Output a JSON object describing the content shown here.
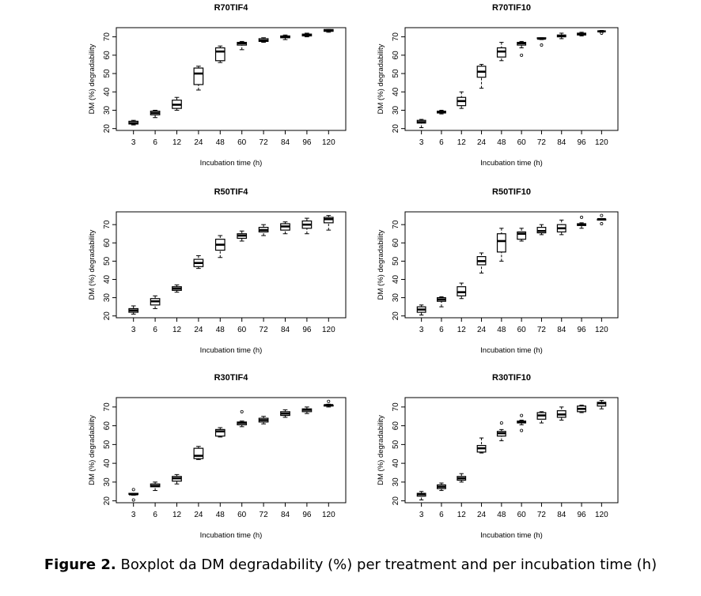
{
  "chart_data": [
    {
      "type": "boxplot",
      "title": "R70TIF4",
      "xlabel": "Incubation time (h)",
      "ylabel": "DM (%) degradability",
      "categories": [
        "3",
        "6",
        "12",
        "24",
        "48",
        "60",
        "72",
        "84",
        "96",
        "120"
      ],
      "boxes": [
        {
          "low": 22,
          "q1": 22.5,
          "median": 23,
          "q3": 24,
          "high": 24.5
        },
        {
          "low": 26,
          "q1": 27.5,
          "median": 28.5,
          "q3": 29.5,
          "high": 30
        },
        {
          "low": 30,
          "q1": 31,
          "median": 33,
          "q3": 35.5,
          "high": 37
        },
        {
          "low": 41,
          "q1": 44,
          "median": 50,
          "q3": 53,
          "high": 54
        },
        {
          "low": 56,
          "q1": 57,
          "median": 62,
          "q3": 64,
          "high": 65
        },
        {
          "low": 63,
          "q1": 65.5,
          "median": 66.5,
          "q3": 67,
          "high": 67.5
        },
        {
          "low": 67,
          "q1": 67.5,
          "median": 68,
          "q3": 69,
          "high": 69.5
        },
        {
          "low": 68.5,
          "q1": 69.5,
          "median": 70,
          "q3": 70.5,
          "high": 71
        },
        {
          "low": 70,
          "q1": 70.5,
          "median": 71,
          "q3": 71.5,
          "high": 72
        },
        {
          "low": 72.5,
          "q1": 73,
          "median": 73.5,
          "q3": 74,
          "high": 74
        }
      ],
      "ylim": [
        19,
        75
      ],
      "yticks": [
        20,
        30,
        40,
        50,
        60,
        70
      ]
    },
    {
      "type": "boxplot",
      "title": "R70TIF10",
      "xlabel": "Incubation time (h)",
      "ylabel": "DM (%) degradability",
      "categories": [
        "3",
        "6",
        "12",
        "24",
        "48",
        "60",
        "72",
        "84",
        "96",
        "120"
      ],
      "boxes": [
        {
          "low": 20.5,
          "q1": 23,
          "median": 23.5,
          "q3": 24.5,
          "high": 25
        },
        {
          "low": 28,
          "q1": 28.5,
          "median": 29,
          "q3": 29.5,
          "high": 30
        },
        {
          "low": 31,
          "q1": 32.5,
          "median": 35,
          "q3": 37,
          "high": 40
        },
        {
          "low": 42,
          "q1": 48,
          "median": 51,
          "q3": 54,
          "high": 55
        },
        {
          "low": 57,
          "q1": 59,
          "median": 62,
          "q3": 64,
          "high": 67
        },
        {
          "low": 64,
          "q1": 65.5,
          "median": 66.5,
          "q3": 67,
          "high": 67.5,
          "outliers": [
            60
          ]
        },
        {
          "low": 68.5,
          "q1": 69,
          "median": 69,
          "q3": 69.5,
          "high": 69.5,
          "outliers": [
            65.5
          ]
        },
        {
          "low": 69,
          "q1": 70,
          "median": 70.5,
          "q3": 71,
          "high": 72
        },
        {
          "low": 70.5,
          "q1": 71,
          "median": 71.5,
          "q3": 72,
          "high": 72.5
        },
        {
          "low": 72.5,
          "q1": 73,
          "median": 73,
          "q3": 73,
          "high": 73.5,
          "outliers": [
            72
          ]
        }
      ],
      "ylim": [
        19,
        75
      ],
      "yticks": [
        20,
        30,
        40,
        50,
        60,
        70
      ]
    },
    {
      "type": "boxplot",
      "title": "R50TIF4",
      "xlabel": "Incubation time (h)",
      "ylabel": "DM (%) degradability",
      "categories": [
        "3",
        "6",
        "12",
        "24",
        "48",
        "60",
        "72",
        "84",
        "96",
        "120"
      ],
      "boxes": [
        {
          "low": 21,
          "q1": 22,
          "median": 23,
          "q3": 24,
          "high": 25.5
        },
        {
          "low": 24,
          "q1": 26,
          "median": 28,
          "q3": 29.5,
          "high": 31
        },
        {
          "low": 33,
          "q1": 34,
          "median": 35,
          "q3": 36,
          "high": 37
        },
        {
          "low": 46,
          "q1": 47,
          "median": 49,
          "q3": 51,
          "high": 53
        },
        {
          "low": 52,
          "q1": 56,
          "median": 59,
          "q3": 62,
          "high": 64
        },
        {
          "low": 61,
          "q1": 62.5,
          "median": 64,
          "q3": 65,
          "high": 66.5
        },
        {
          "low": 64,
          "q1": 66,
          "median": 67,
          "q3": 68.5,
          "high": 70
        },
        {
          "low": 65,
          "q1": 67,
          "median": 69,
          "q3": 70.5,
          "high": 71.5
        },
        {
          "low": 65,
          "q1": 68,
          "median": 70,
          "q3": 72,
          "high": 73.5
        },
        {
          "low": 67,
          "q1": 71,
          "median": 73,
          "q3": 74,
          "high": 75
        }
      ],
      "ylim": [
        19,
        77
      ],
      "yticks": [
        20,
        30,
        40,
        50,
        60,
        70
      ]
    },
    {
      "type": "boxplot",
      "title": "R50TIF10",
      "xlabel": "Incubation time (h)",
      "ylabel": "DM (%) degradability",
      "categories": [
        "3",
        "6",
        "12",
        "24",
        "48",
        "60",
        "72",
        "84",
        "96",
        "120"
      ],
      "boxes": [
        {
          "low": 20.5,
          "q1": 22,
          "median": 23.5,
          "q3": 25,
          "high": 26
        },
        {
          "low": 25,
          "q1": 28,
          "median": 29,
          "q3": 30,
          "high": 30.5
        },
        {
          "low": 29.5,
          "q1": 31,
          "median": 33,
          "q3": 36,
          "high": 38
        },
        {
          "low": 43.5,
          "q1": 48,
          "median": 50,
          "q3": 52.5,
          "high": 54.5
        },
        {
          "low": 50,
          "q1": 55,
          "median": 61,
          "q3": 65,
          "high": 68
        },
        {
          "low": 61,
          "q1": 62,
          "median": 65,
          "q3": 66,
          "high": 68
        },
        {
          "low": 64.5,
          "q1": 65.5,
          "median": 66.5,
          "q3": 68.5,
          "high": 70
        },
        {
          "low": 64.5,
          "q1": 66,
          "median": 68,
          "q3": 70,
          "high": 72.5
        },
        {
          "low": 68,
          "q1": 69.5,
          "median": 70,
          "q3": 70.5,
          "high": 71,
          "outliers": [
            74
          ]
        },
        {
          "low": 72.5,
          "q1": 72.5,
          "median": 73,
          "q3": 73,
          "high": 73,
          "outliers": [
            75,
            70.5
          ]
        }
      ],
      "ylim": [
        19,
        77
      ],
      "yticks": [
        20,
        30,
        40,
        50,
        60,
        70
      ]
    },
    {
      "type": "boxplot",
      "title": "R30TIF4",
      "xlabel": "Incubation time (h)",
      "ylabel": "DM (%) degradability",
      "categories": [
        "3",
        "6",
        "12",
        "24",
        "48",
        "60",
        "72",
        "84",
        "96",
        "120"
      ],
      "boxes": [
        {
          "low": 23,
          "q1": 23.5,
          "median": 23.5,
          "q3": 24,
          "high": 24,
          "outliers": [
            26,
            20.5
          ]
        },
        {
          "low": 25.5,
          "q1": 27.5,
          "median": 28,
          "q3": 29,
          "high": 30
        },
        {
          "low": 29,
          "q1": 30.5,
          "median": 32,
          "q3": 33,
          "high": 34
        },
        {
          "low": 42,
          "q1": 42.5,
          "median": 44,
          "q3": 48,
          "high": 49
        },
        {
          "low": 54,
          "q1": 54.5,
          "median": 57,
          "q3": 58,
          "high": 59
        },
        {
          "low": 59.5,
          "q1": 60.5,
          "median": 61.5,
          "q3": 62,
          "high": 62.5,
          "outliers": [
            67.5
          ]
        },
        {
          "low": 61,
          "q1": 62,
          "median": 63,
          "q3": 64,
          "high": 65
        },
        {
          "low": 64.5,
          "q1": 65.5,
          "median": 66.5,
          "q3": 67.5,
          "high": 68.5
        },
        {
          "low": 66.5,
          "q1": 67.5,
          "median": 68.5,
          "q3": 69,
          "high": 70
        },
        {
          "low": 70,
          "q1": 70.5,
          "median": 71,
          "q3": 71,
          "high": 71.5,
          "outliers": [
            73
          ]
        }
      ],
      "ylim": [
        19,
        75
      ],
      "yticks": [
        20,
        30,
        40,
        50,
        60,
        70
      ]
    },
    {
      "type": "boxplot",
      "title": "R30TIF10",
      "xlabel": "Incubation time (h)",
      "ylabel": "DM (%) degradability",
      "categories": [
        "3",
        "6",
        "12",
        "24",
        "48",
        "60",
        "72",
        "84",
        "96",
        "120"
      ],
      "boxes": [
        {
          "low": 20.5,
          "q1": 22.5,
          "median": 23.5,
          "q3": 24,
          "high": 25
        },
        {
          "low": 25.5,
          "q1": 26.5,
          "median": 27.5,
          "q3": 28.5,
          "high": 29.5
        },
        {
          "low": 30,
          "q1": 31,
          "median": 32,
          "q3": 33,
          "high": 34.5
        },
        {
          "low": 45.5,
          "q1": 46,
          "median": 48,
          "q3": 49.5,
          "high": 53.5
        },
        {
          "low": 52,
          "q1": 54.5,
          "median": 56,
          "q3": 57,
          "high": 58,
          "outliers": [
            61.5
          ]
        },
        {
          "low": 60.5,
          "q1": 61.5,
          "median": 62,
          "q3": 62.5,
          "high": 63,
          "outliers": [
            65.5,
            57.5
          ]
        },
        {
          "low": 61.5,
          "q1": 63.5,
          "median": 65.5,
          "q3": 67,
          "high": 67.5
        },
        {
          "low": 63,
          "q1": 64.5,
          "median": 66,
          "q3": 68,
          "high": 70
        },
        {
          "low": 67,
          "q1": 67.5,
          "median": 69,
          "q3": 70.5,
          "high": 71
        },
        {
          "low": 69,
          "q1": 70.5,
          "median": 72,
          "q3": 72.5,
          "high": 73.5
        }
      ],
      "ylim": [
        19,
        75
      ],
      "yticks": [
        20,
        30,
        40,
        50,
        60,
        70
      ]
    }
  ],
  "caption": {
    "label": "Figure 2.",
    "text": "Boxplot da DM degradability (%) per treatment and per incubation time (h)"
  }
}
